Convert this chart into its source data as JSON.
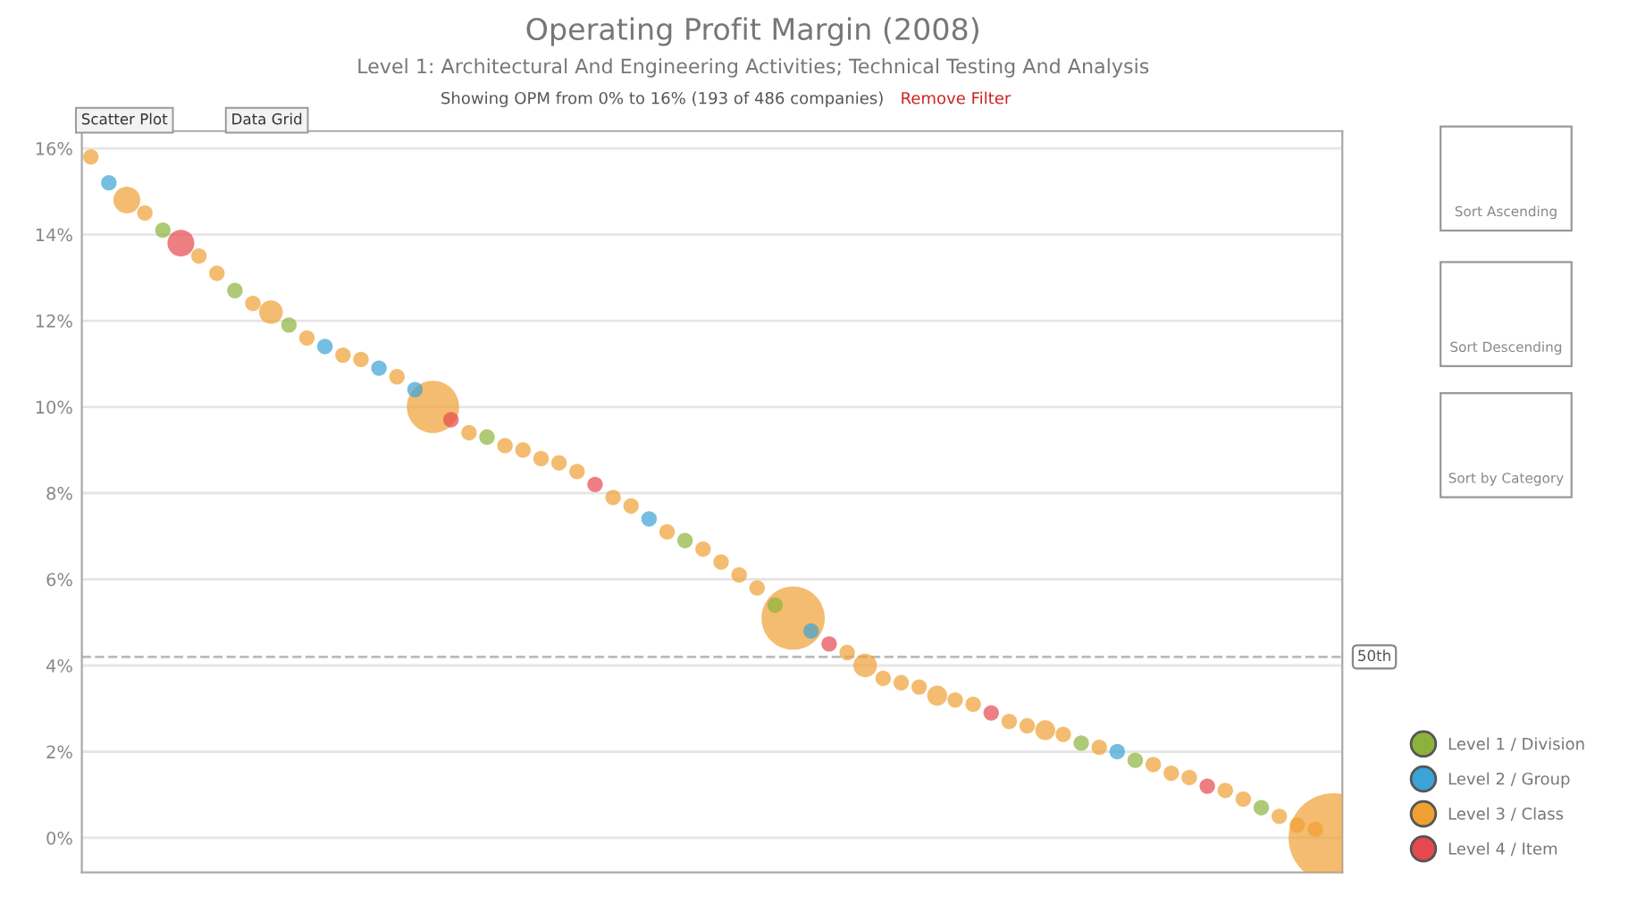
{
  "chart_data": {
    "type": "bubble",
    "title": "Operating Profit Margin (2008)",
    "subtitle": "Level 1: Architectural And Engineering Activities; Technical Testing And Analysis",
    "annotations": [
      "Showing OPM from 0% to 16% (193 of 486 companies)",
      "Remove Filter",
      "Scatter Plot",
      "Data Grid",
      "Sort Ascending",
      "Sort Descending",
      "Sort by Category"
    ],
    "categories": [
      null,
      null,
      null,
      null,
      null,
      null,
      null,
      null,
      null,
      null,
      null,
      null,
      null,
      null,
      null,
      null,
      null,
      null,
      null,
      null,
      null,
      null,
      null,
      null,
      null,
      null,
      null,
      null,
      null,
      null,
      null,
      null,
      null,
      null,
      null,
      null,
      null,
      null,
      null,
      null,
      null,
      null,
      null,
      null,
      null,
      null,
      null,
      null,
      null,
      null,
      null,
      null,
      null,
      null,
      null,
      null,
      null,
      null,
      null,
      null,
      null,
      null,
      null,
      null,
      null,
      null,
      null,
      null,
      null,
      null
    ],
    "series": [
      {
        "name": "Level 1 / Division",
        "color": "#8bb33c",
        "values": [
          null,
          null,
          null,
          null,
          14.1,
          null,
          null,
          null,
          12.7,
          null,
          null,
          11.9,
          null,
          null,
          null,
          null,
          null,
          null,
          null,
          null,
          null,
          null,
          9.3,
          null,
          null,
          null,
          null,
          null,
          null,
          null,
          null,
          null,
          null,
          6.9,
          null,
          null,
          null,
          null,
          5.4,
          null,
          null,
          null,
          null,
          null,
          null,
          null,
          null,
          null,
          null,
          null,
          null,
          null,
          null,
          null,
          null,
          2.2,
          null,
          null,
          1.8,
          null,
          null,
          null,
          null,
          null,
          null,
          0.7,
          null,
          null,
          null,
          null
        ],
        "sizes": [
          null,
          null,
          null,
          null,
          0.03,
          null,
          null,
          null,
          0.03,
          null,
          null,
          0.03,
          null,
          null,
          null,
          null,
          null,
          null,
          null,
          null,
          null,
          null,
          0.03,
          null,
          null,
          null,
          null,
          null,
          null,
          null,
          null,
          null,
          null,
          0.03,
          null,
          null,
          null,
          null,
          0.03,
          null,
          null,
          null,
          null,
          null,
          null,
          null,
          null,
          null,
          null,
          null,
          null,
          null,
          null,
          null,
          null,
          0.03,
          null,
          null,
          0.03,
          null,
          null,
          null,
          null,
          null,
          null,
          0.03,
          null,
          null,
          null,
          null
        ]
      },
      {
        "name": "Level 2 / Group",
        "color": "#3ba3d6",
        "values": [
          null,
          15.2,
          null,
          null,
          null,
          null,
          null,
          null,
          null,
          null,
          null,
          null,
          null,
          11.4,
          null,
          null,
          10.9,
          null,
          10.4,
          null,
          null,
          null,
          null,
          null,
          null,
          null,
          null,
          null,
          null,
          null,
          null,
          7.4,
          null,
          null,
          null,
          null,
          null,
          null,
          null,
          null,
          4.8,
          null,
          null,
          null,
          null,
          null,
          null,
          null,
          null,
          null,
          null,
          null,
          null,
          null,
          null,
          null,
          null,
          2.0,
          null,
          null,
          null,
          null,
          null,
          null,
          null,
          null,
          null,
          null,
          null,
          null
        ],
        "sizes": [
          null,
          0.03,
          null,
          null,
          null,
          null,
          null,
          null,
          null,
          null,
          null,
          null,
          null,
          0.03,
          null,
          null,
          0.03,
          null,
          0.03,
          null,
          null,
          null,
          null,
          null,
          null,
          null,
          null,
          null,
          null,
          null,
          null,
          0.03,
          null,
          null,
          null,
          null,
          null,
          null,
          null,
          null,
          0.03,
          null,
          null,
          null,
          null,
          null,
          null,
          null,
          null,
          null,
          null,
          null,
          null,
          null,
          null,
          null,
          null,
          0.03,
          null,
          null,
          null,
          null,
          null,
          null,
          null,
          null,
          null,
          null,
          null,
          null
        ]
      },
      {
        "name": "Level 3 / Class",
        "color": "#f0a033",
        "values": [
          15.8,
          null,
          14.8,
          14.5,
          null,
          null,
          13.5,
          13.1,
          null,
          12.4,
          12.2,
          null,
          11.6,
          null,
          11.2,
          11.1,
          null,
          10.7,
          null,
          10.0,
          null,
          9.4,
          null,
          9.1,
          9.0,
          8.8,
          8.7,
          8.5,
          null,
          7.9,
          7.7,
          null,
          7.1,
          null,
          6.7,
          6.4,
          6.1,
          5.8,
          null,
          5.1,
          null,
          null,
          4.3,
          4.0,
          3.7,
          3.6,
          3.5,
          3.3,
          3.2,
          3.1,
          null,
          2.7,
          2.6,
          2.5,
          2.4,
          null,
          2.1,
          null,
          null,
          1.7,
          1.5,
          1.4,
          null,
          1.1,
          0.9,
          null,
          0.5,
          0.3,
          0.2,
          0.0
        ],
        "sizes": [
          0.03,
          null,
          0.09,
          0.03,
          null,
          null,
          0.03,
          0.03,
          null,
          0.03,
          0.07,
          null,
          0.03,
          null,
          0.03,
          0.03,
          null,
          0.03,
          null,
          0.34,
          null,
          0.03,
          null,
          0.03,
          0.03,
          0.03,
          0.03,
          0.03,
          null,
          0.03,
          0.03,
          null,
          0.03,
          null,
          0.03,
          0.03,
          0.03,
          0.03,
          null,
          0.5,
          null,
          null,
          0.03,
          0.07,
          0.03,
          0.03,
          0.03,
          0.05,
          0.03,
          0.03,
          null,
          0.03,
          0.03,
          0.05,
          0.03,
          null,
          0.03,
          null,
          null,
          0.03,
          0.03,
          0.03,
          null,
          0.03,
          0.03,
          null,
          0.03,
          0.03,
          0.03,
          1.0
        ]
      },
      {
        "name": "Level 4 / Item",
        "color": "#e5484f",
        "values": [
          null,
          null,
          null,
          null,
          null,
          13.8,
          null,
          null,
          null,
          null,
          null,
          null,
          null,
          null,
          null,
          null,
          null,
          null,
          null,
          null,
          9.7,
          null,
          null,
          null,
          null,
          null,
          null,
          null,
          8.2,
          null,
          null,
          null,
          null,
          null,
          null,
          null,
          null,
          null,
          null,
          null,
          null,
          4.5,
          null,
          null,
          null,
          null,
          null,
          null,
          null,
          null,
          2.9,
          null,
          null,
          null,
          null,
          null,
          null,
          null,
          null,
          null,
          null,
          null,
          1.2,
          null,
          null,
          null,
          null,
          null,
          null,
          null
        ],
        "sizes": [
          null,
          null,
          null,
          null,
          null,
          0.09,
          null,
          null,
          null,
          null,
          null,
          null,
          null,
          null,
          null,
          null,
          null,
          null,
          null,
          null,
          0.03,
          null,
          null,
          null,
          null,
          null,
          null,
          null,
          0.03,
          null,
          null,
          null,
          null,
          null,
          null,
          null,
          null,
          null,
          null,
          null,
          null,
          0.03,
          null,
          null,
          null,
          null,
          null,
          null,
          null,
          null,
          0.03,
          null,
          null,
          null,
          null,
          null,
          null,
          null,
          null,
          null,
          null,
          null,
          0.03,
          null,
          null,
          null,
          null,
          null,
          null,
          null
        ]
      }
    ],
    "ylim": [
      -0.8,
      16.4
    ],
    "yticks": [
      {
        "value": 0,
        "label": "0%"
      },
      {
        "value": 2,
        "label": "2%"
      },
      {
        "value": 4,
        "label": "4%"
      },
      {
        "value": 6,
        "label": "6%"
      },
      {
        "value": 8,
        "label": "8%"
      },
      {
        "value": 10,
        "label": "10%"
      },
      {
        "value": 12,
        "label": "12%"
      },
      {
        "value": 14,
        "label": "14%"
      },
      {
        "value": 16,
        "label": "16%"
      }
    ],
    "ref_lines": [
      {
        "axis": "y",
        "value": 4.2,
        "label": "50th",
        "color": "#bbbbbb",
        "line_style": "dashed"
      }
    ],
    "grid": "y",
    "legend": "bottom right",
    "marker": "circle",
    "tick_labels": "y"
  }
}
